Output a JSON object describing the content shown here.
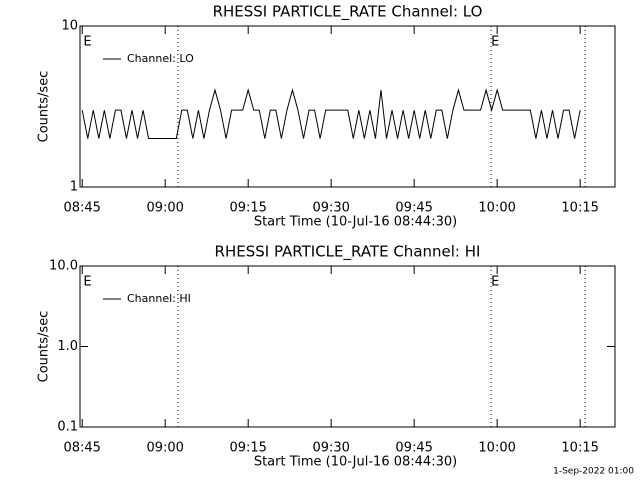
{
  "chart_data": [
    {
      "type": "line",
      "title": "RHESSI PARTICLE_RATE Channel: LO",
      "xlabel": "Start Time (10-Jul-16 08:44:30)",
      "ylabel": "Counts/sec",
      "log_y": true,
      "xlim": [
        524.6,
        621.3
      ],
      "ylim": [
        1,
        10
      ],
      "xticks": [
        {
          "value": 525,
          "label": "08:45"
        },
        {
          "value": 540,
          "label": "09:00"
        },
        {
          "value": 555,
          "label": "09:15"
        },
        {
          "value": 570,
          "label": "09:30"
        },
        {
          "value": 585,
          "label": "09:45"
        },
        {
          "value": 600,
          "label": "10:00"
        },
        {
          "value": 615,
          "label": "10:15"
        }
      ],
      "yticks": [
        1,
        10
      ],
      "events": [
        542.3,
        598.9,
        615.9
      ],
      "event_labels": [
        {
          "x": 525.2,
          "text": "E"
        },
        {
          "x": 598.9,
          "text": "E"
        }
      ],
      "series": [
        {
          "name": "Channel: LO",
          "color": "#000000",
          "x": [
            525,
            526,
            527,
            528,
            529,
            530,
            531,
            532,
            533,
            534,
            535,
            536,
            537,
            538,
            539,
            540,
            541,
            542,
            543,
            544,
            545,
            546,
            547,
            548,
            549,
            550,
            551,
            552,
            553,
            554,
            555,
            556,
            557,
            558,
            559,
            560,
            561,
            562,
            563,
            564,
            565,
            566,
            567,
            568,
            569,
            570,
            571,
            572,
            573,
            574,
            575,
            576,
            577,
            578,
            579,
            580,
            581,
            582,
            583,
            584,
            585,
            586,
            587,
            588,
            589,
            590,
            591,
            592,
            593,
            594,
            595,
            596,
            597,
            598,
            599,
            600,
            601,
            602,
            603,
            604,
            605,
            606,
            607,
            608,
            609,
            610,
            611,
            612,
            613,
            614,
            615
          ],
          "values": [
            3,
            2,
            3,
            2,
            3,
            2,
            3,
            3,
            2,
            3,
            2,
            3,
            2,
            2,
            2,
            2,
            2,
            2,
            3,
            3,
            2,
            3,
            2,
            3,
            4,
            3,
            2,
            3,
            3,
            3,
            4,
            3,
            3,
            2,
            3,
            3,
            2,
            3,
            4,
            3,
            2,
            3,
            3,
            2,
            3,
            3,
            3,
            3,
            3,
            2,
            3,
            2,
            3,
            2,
            4,
            2,
            3,
            2,
            3,
            2,
            3,
            2,
            3,
            2,
            3,
            3,
            2,
            3,
            4,
            3,
            3,
            3,
            3,
            4,
            3,
            4,
            3,
            3,
            3,
            3,
            3,
            3,
            2,
            3,
            2,
            3,
            2,
            3,
            3,
            2,
            3
          ]
        }
      ]
    },
    {
      "type": "line",
      "title": "RHESSI PARTICLE_RATE Channel: HI",
      "xlabel": "Start Time (10-Jul-16 08:44:30)",
      "ylabel": "Counts/sec",
      "log_y": true,
      "xlim": [
        524.6,
        621.3
      ],
      "ylim": [
        0.1,
        10
      ],
      "xticks": [
        {
          "value": 525,
          "label": "08:45"
        },
        {
          "value": 540,
          "label": "09:00"
        },
        {
          "value": 555,
          "label": "09:15"
        },
        {
          "value": 570,
          "label": "09:30"
        },
        {
          "value": 585,
          "label": "09:45"
        },
        {
          "value": 600,
          "label": "10:00"
        },
        {
          "value": 615,
          "label": "10:15"
        }
      ],
      "yticks": [
        0.1,
        {
          "value": 1,
          "label": "1.0"
        },
        {
          "value": 10,
          "label": "10.0"
        }
      ],
      "events": [
        542.3,
        598.9,
        615.9
      ],
      "event_labels": [
        {
          "x": 525.2,
          "text": "E"
        },
        {
          "x": 598.9,
          "text": "E"
        }
      ],
      "series": [
        {
          "name": "Channel: HI",
          "color": "#000000",
          "x": [],
          "values": []
        }
      ]
    }
  ],
  "footer": "1-Sep-2022 01:00"
}
